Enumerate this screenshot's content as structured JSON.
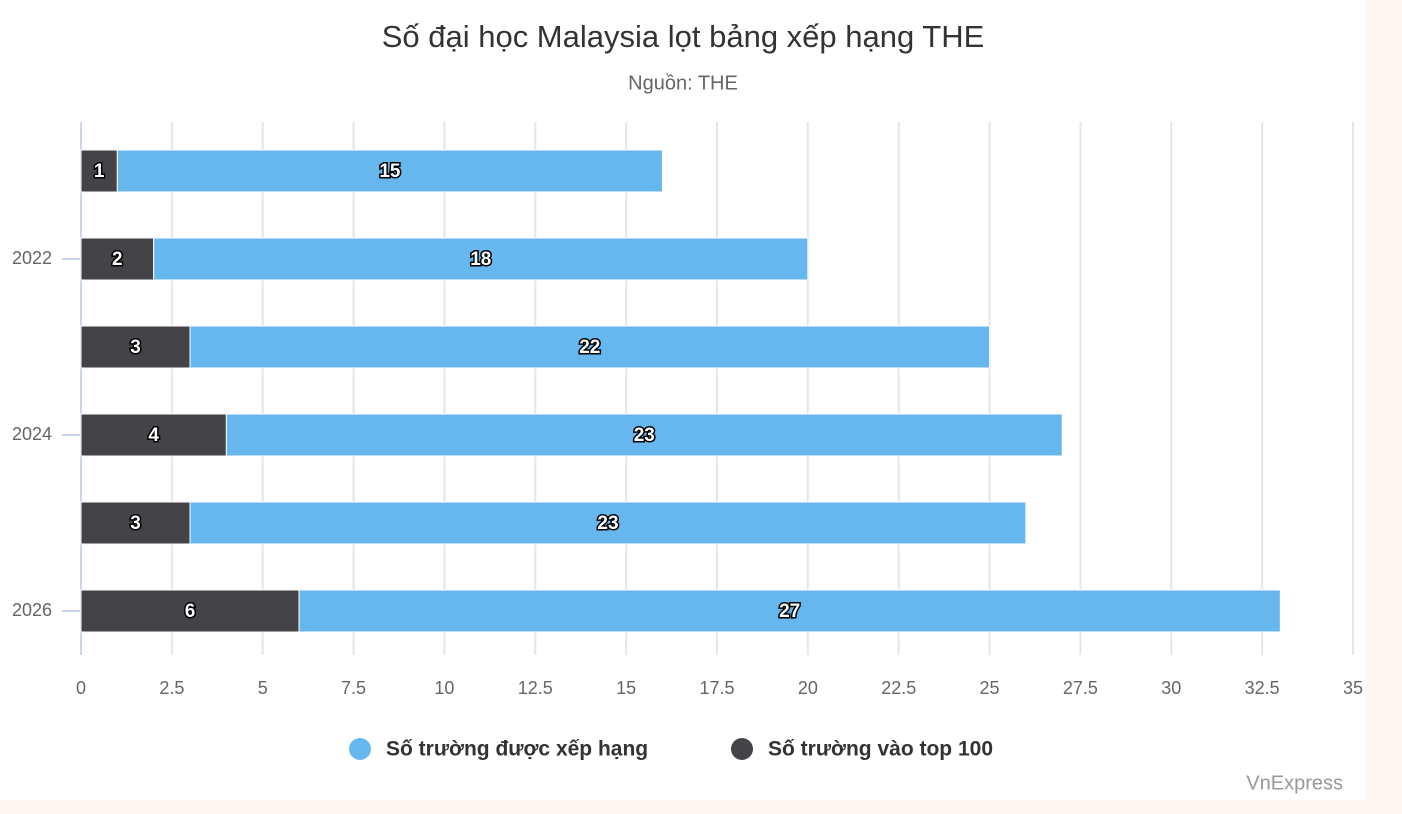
{
  "chart_data": {
    "type": "stacked-bar-horizontal",
    "title": "Số đại học Malaysia lọt bảng xếp hạng THE",
    "subtitle": "Nguồn: THE",
    "credit": "VnExpress",
    "categories": [
      null,
      "2022",
      null,
      "2024",
      null,
      "2026"
    ],
    "series": [
      {
        "name": "Số trường được xếp hạng",
        "color": "#67b7ef",
        "values": [
          15,
          18,
          22,
          23,
          23,
          27
        ]
      },
      {
        "name": "Số trường vào top 100",
        "color": "#434348",
        "values": [
          1,
          2,
          3,
          4,
          3,
          6
        ]
      }
    ],
    "xlim": [
      0,
      35
    ],
    "xticks": [
      0,
      2.5,
      5,
      7.5,
      10,
      12.5,
      15,
      17.5,
      20,
      22.5,
      25,
      27.5,
      30,
      32.5,
      35
    ],
    "grid": true
  }
}
